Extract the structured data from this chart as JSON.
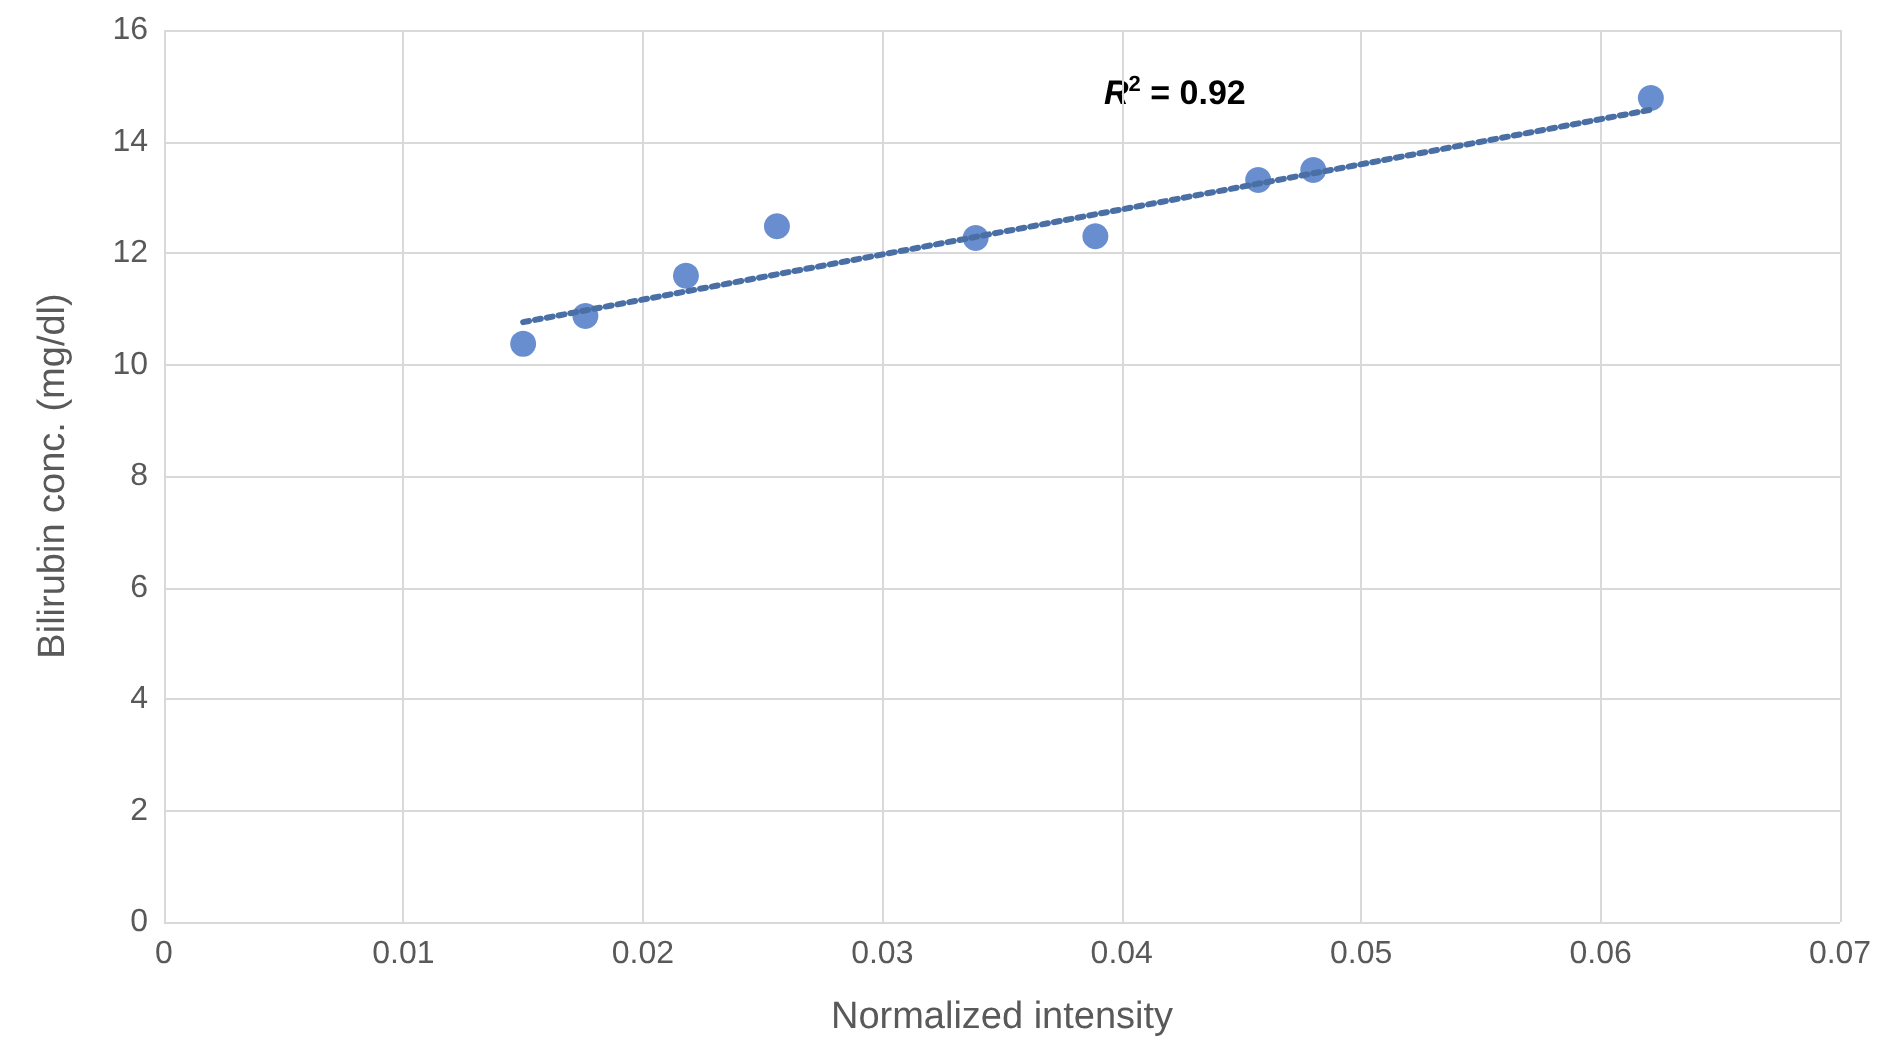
{
  "chart_data": {
    "type": "scatter",
    "xlabel": "Normalized intensity",
    "ylabel": "Bilirubin conc. (mg/dl)",
    "xlim": [
      0,
      0.07
    ],
    "xticks": [
      0,
      0.01,
      0.02,
      0.03,
      0.04,
      0.05,
      0.06,
      0.07
    ],
    "ylim": [
      0,
      16
    ],
    "yticks": [
      0,
      2,
      4,
      6,
      8,
      10,
      12,
      14,
      16
    ],
    "grid": true,
    "marker": "circle",
    "annotations": [
      "R$^{2}$ = 0.92"
    ],
    "series": [
      {
        "color": "#4472c4",
        "x": [
          0.015,
          0.0176,
          0.0218,
          0.0256,
          0.0339,
          0.0389,
          0.0457,
          0.048,
          0.0621
        ],
        "values": [
          10.37,
          10.87,
          11.59,
          12.48,
          12.27,
          12.3,
          13.31,
          13.49,
          14.78
        ]
      },
      {
        "type": "line",
        "color": "#4a6fa5",
        "x": [
          0.015,
          0.0621
        ],
        "values": [
          10.76,
          14.57
        ],
        "line_style": "dotted",
        "marker": "none"
      }
    ]
  }
}
